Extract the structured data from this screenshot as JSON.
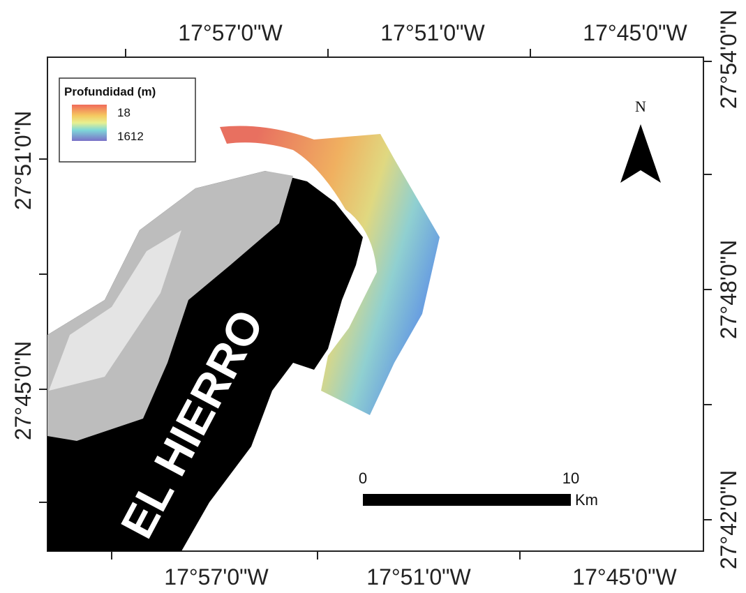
{
  "map": {
    "top_labels": [
      "17°57'0\"W",
      "17°51'0\"W",
      "17°45'0\"W"
    ],
    "bottom_labels": [
      "17°57'0\"W",
      "17°51'0\"W",
      "17°45'0\"W"
    ],
    "left_labels": [
      "27°51'0\"N",
      "27°45'0\"N"
    ],
    "right_labels": [
      "27°54'0\"N",
      "27°48'0\"N",
      "27°42'0\"N"
    ],
    "legend": {
      "title": "Profundidad (m)",
      "high_label": "18",
      "low_label": "1612"
    },
    "north": "N",
    "scale_bar": {
      "start": "0",
      "end": "10",
      "unit": "Km"
    },
    "island_label": "EL HIERRO"
  }
}
